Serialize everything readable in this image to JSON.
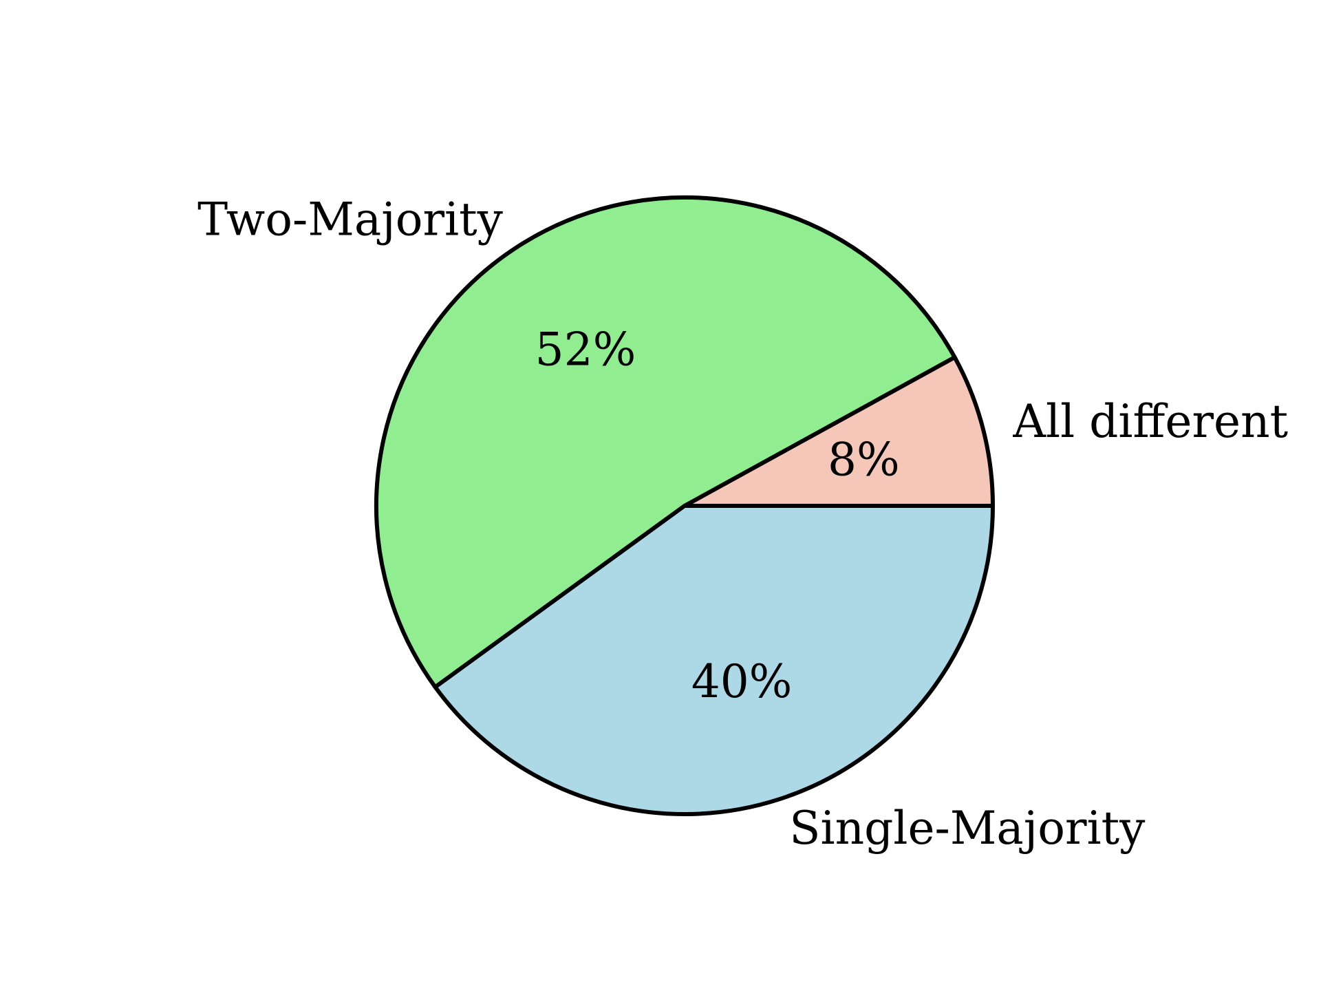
{
  "chart_data": {
    "type": "pie",
    "slices": [
      {
        "label": "All different",
        "value": 8,
        "pct_text": "8%",
        "color": "#f5c7b8"
      },
      {
        "label": "Two-Majority",
        "value": 52,
        "pct_text": "52%",
        "color": "#90ee90"
      },
      {
        "label": "Single-Majority",
        "value": 40,
        "pct_text": "40%",
        "color": "#add8e6"
      }
    ],
    "start_angle_deg": 0,
    "direction": "counterclockwise",
    "edge_color": "#000000",
    "title": ""
  }
}
